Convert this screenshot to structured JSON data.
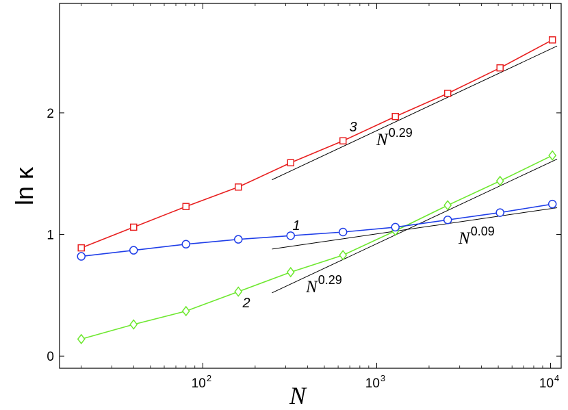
{
  "chart_data": {
    "type": "line",
    "x_scale": "log",
    "xlim": [
      15,
      11500
    ],
    "ylim": [
      -0.1,
      2.9
    ],
    "xlabel": "N",
    "ylabel": "ln κ",
    "xticks": [
      {
        "value": 100,
        "base": "10",
        "exp": "2"
      },
      {
        "value": 1000,
        "base": "10",
        "exp": "3"
      },
      {
        "value": 10000,
        "base": "10",
        "exp": "4"
      }
    ],
    "yticks": [
      "0",
      "1",
      "2"
    ],
    "grid": false,
    "series": [
      {
        "label": "1",
        "color": "#1f3ee8",
        "marker": "circle",
        "x": [
          20,
          40,
          80,
          160,
          320,
          640,
          1280,
          2560,
          5120,
          10240
        ],
        "y": [
          0.82,
          0.87,
          0.92,
          0.96,
          0.99,
          1.02,
          1.06,
          1.12,
          1.18,
          1.25
        ]
      },
      {
        "label": "2",
        "color": "#6ee830",
        "marker": "diamond",
        "x": [
          20,
          40,
          80,
          160,
          320,
          640,
          1280,
          2560,
          5120,
          10240
        ],
        "y": [
          0.14,
          0.26,
          0.37,
          0.53,
          0.69,
          0.83,
          1.03,
          1.24,
          1.44,
          1.65
        ]
      },
      {
        "label": "3",
        "color": "#e82020",
        "marker": "square",
        "x": [
          20,
          40,
          80,
          160,
          320,
          640,
          1280,
          2560,
          5120,
          10240
        ],
        "y": [
          0.89,
          1.06,
          1.23,
          1.39,
          1.59,
          1.77,
          1.97,
          2.16,
          2.37,
          2.6
        ]
      }
    ],
    "fit_lines": [
      {
        "label_base": "N",
        "label_exp": "0.29",
        "x": [
          250,
          10900
        ],
        "y": [
          1.45,
          2.55
        ]
      },
      {
        "label_base": "N",
        "label_exp": "0.09",
        "x": [
          250,
          10900
        ],
        "y": [
          0.88,
          1.22
        ]
      },
      {
        "label_base": "N",
        "label_exp": "0.29",
        "x": [
          250,
          10900
        ],
        "y": [
          0.52,
          1.62
        ]
      }
    ]
  }
}
